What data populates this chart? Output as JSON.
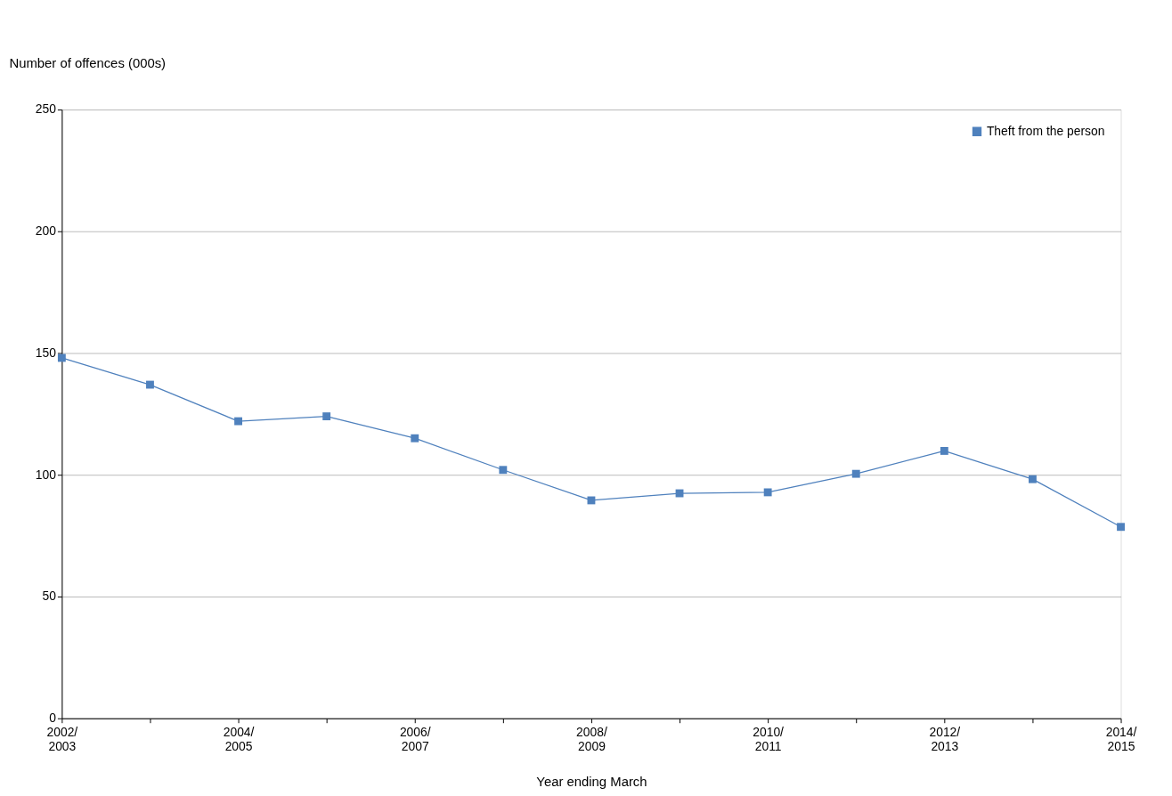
{
  "chart_data": {
    "type": "line",
    "xlabel": "Year ending March",
    "ylabel": "Number of offences (000s)",
    "categories": [
      "2002/2003",
      null,
      "2004/2005",
      null,
      "2006/2007",
      null,
      "2008/2009",
      null,
      "2010/2011",
      null,
      "2012/2013",
      null,
      "2014/2015"
    ],
    "series": [
      {
        "name": "Theft from the person",
        "color": "#4f81bd",
        "values": [
          148,
          137,
          122,
          124,
          115,
          102,
          89.5,
          92.4,
          92.8,
          100.4,
          109.8,
          98.2,
          78.6
        ]
      }
    ],
    "ylim": [
      0,
      250
    ],
    "yticks": [
      0,
      50,
      100,
      150,
      200,
      250
    ],
    "grid": "y",
    "legend": "top right",
    "marker": "square",
    "line_style": "solid"
  }
}
